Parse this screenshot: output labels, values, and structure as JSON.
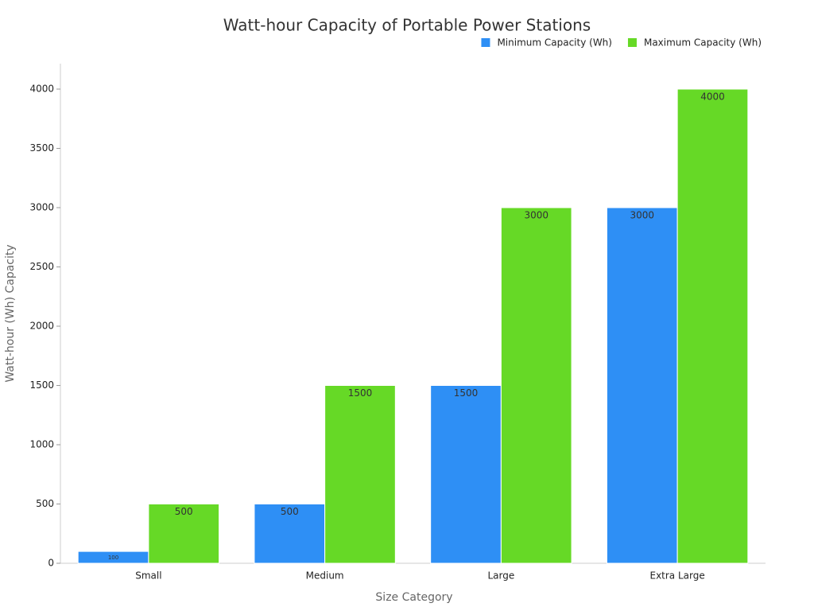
{
  "chart_data": {
    "type": "bar",
    "title": "Watt-hour Capacity of Portable Power Stations",
    "x_label": "Size Category",
    "y_label": "Watt-hour (Wh) Capacity",
    "categories": [
      "Small",
      "Medium",
      "Large",
      "Extra Large"
    ],
    "series": [
      {
        "name": "Minimum Capacity (Wh)",
        "color": "#2e8ff5",
        "values": [
          100,
          500,
          1500,
          3000
        ]
      },
      {
        "name": "Maximum Capacity (Wh)",
        "color": "#66d926",
        "values": [
          500,
          1500,
          3000,
          4000
        ]
      }
    ],
    "ylim": [
      0,
      4200
    ],
    "yticks": [
      0,
      500,
      1000,
      1500,
      2000,
      2500,
      3000,
      3500,
      4000
    ],
    "grid": false,
    "legend": "top-right"
  }
}
